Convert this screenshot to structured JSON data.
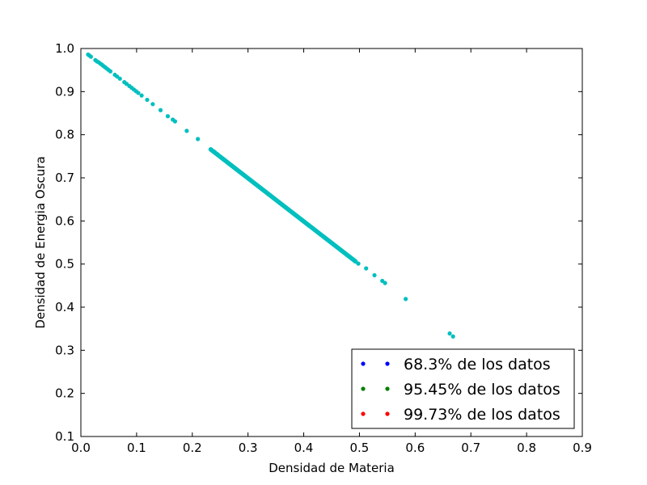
{
  "chart_data": {
    "type": "scatter",
    "title": "",
    "xlabel": "Densidad de Materia",
    "ylabel": "Densidad de Energia Oscura",
    "xlim": [
      0.0,
      0.9
    ],
    "ylim": [
      0.1,
      1.0
    ],
    "xticks": [
      "0.0",
      "0.1",
      "0.2",
      "0.3",
      "0.4",
      "0.5",
      "0.6",
      "0.7",
      "0.8",
      "0.9"
    ],
    "yticks": [
      "0.1",
      "0.2",
      "0.3",
      "0.4",
      "0.5",
      "0.6",
      "0.7",
      "0.8",
      "0.9",
      "1.0"
    ],
    "grid": false,
    "legend_position": "lower-right",
    "legend": [
      {
        "label": "68.3% de los datos",
        "color": "#0000ff"
      },
      {
        "label": "95.45% de los datos",
        "color": "#008000"
      },
      {
        "label": "99.73% de los datos",
        "color": "#ff0000"
      }
    ],
    "series": [
      {
        "color": "#00bfbf",
        "line": {
          "x_start": 0.233,
          "x_end": 0.493,
          "y_start": 0.766,
          "y_end": 0.506
        },
        "points": [
          {
            "x": 0.013,
            "y": 0.986
          },
          {
            "x": 0.015,
            "y": 0.984
          },
          {
            "x": 0.018,
            "y": 0.981
          },
          {
            "x": 0.026,
            "y": 0.973
          },
          {
            "x": 0.029,
            "y": 0.97
          },
          {
            "x": 0.032,
            "y": 0.968
          },
          {
            "x": 0.035,
            "y": 0.965
          },
          {
            "x": 0.038,
            "y": 0.962
          },
          {
            "x": 0.041,
            "y": 0.959
          },
          {
            "x": 0.044,
            "y": 0.956
          },
          {
            "x": 0.047,
            "y": 0.953
          },
          {
            "x": 0.05,
            "y": 0.95
          },
          {
            "x": 0.053,
            "y": 0.947
          },
          {
            "x": 0.061,
            "y": 0.939
          },
          {
            "x": 0.065,
            "y": 0.935
          },
          {
            "x": 0.07,
            "y": 0.93
          },
          {
            "x": 0.078,
            "y": 0.922
          },
          {
            "x": 0.082,
            "y": 0.918
          },
          {
            "x": 0.087,
            "y": 0.913
          },
          {
            "x": 0.091,
            "y": 0.909
          },
          {
            "x": 0.095,
            "y": 0.905
          },
          {
            "x": 0.099,
            "y": 0.901
          },
          {
            "x": 0.103,
            "y": 0.897
          },
          {
            "x": 0.109,
            "y": 0.891
          },
          {
            "x": 0.119,
            "y": 0.881
          },
          {
            "x": 0.129,
            "y": 0.871
          },
          {
            "x": 0.143,
            "y": 0.857
          },
          {
            "x": 0.156,
            "y": 0.843
          },
          {
            "x": 0.165,
            "y": 0.835
          },
          {
            "x": 0.169,
            "y": 0.831
          },
          {
            "x": 0.19,
            "y": 0.809
          },
          {
            "x": 0.21,
            "y": 0.79
          },
          {
            "x": 0.233,
            "y": 0.766
          },
          {
            "x": 0.24,
            "y": 0.76
          },
          {
            "x": 0.245,
            "y": 0.755
          },
          {
            "x": 0.498,
            "y": 0.501
          },
          {
            "x": 0.512,
            "y": 0.49
          },
          {
            "x": 0.527,
            "y": 0.474
          },
          {
            "x": 0.541,
            "y": 0.461
          },
          {
            "x": 0.546,
            "y": 0.456
          },
          {
            "x": 0.583,
            "y": 0.419
          },
          {
            "x": 0.662,
            "y": 0.339
          },
          {
            "x": 0.668,
            "y": 0.332
          }
        ]
      }
    ]
  }
}
